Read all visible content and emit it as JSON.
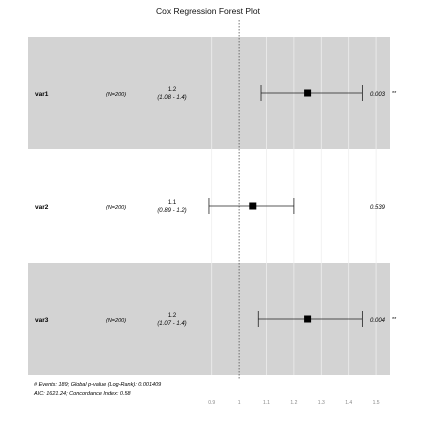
{
  "chart_data": {
    "type": "forest",
    "title": "Cox Regression Forest Plot",
    "x_range": [
      0.85,
      1.58
    ],
    "reference_line": 1.0,
    "ticks": [
      {
        "value": 0.9,
        "label": "0.9"
      },
      {
        "value": 1.0,
        "label": "1"
      },
      {
        "value": 1.1,
        "label": "1.1"
      },
      {
        "value": 1.2,
        "label": "1.2"
      },
      {
        "value": 1.3,
        "label": "1.3"
      },
      {
        "value": 1.4,
        "label": "1.4"
      },
      {
        "value": 1.5,
        "label": "1.5"
      }
    ],
    "rows": [
      {
        "variable": "var1",
        "n_label": "(N=200)",
        "hr": 1.25,
        "lower": 1.08,
        "upper": 1.45,
        "hr_label": "1.2",
        "ci_label": "(1.08 - 1.4)",
        "p_label": "0.003",
        "sig_label": "**",
        "shaded": true
      },
      {
        "variable": "var2",
        "n_label": "(N=200)",
        "hr": 1.05,
        "lower": 0.89,
        "upper": 1.2,
        "hr_label": "1.1",
        "ci_label": "(0.89 - 1.2)",
        "p_label": "0.539",
        "sig_label": "",
        "shaded": false
      },
      {
        "variable": "var3",
        "n_label": "(N=200)",
        "hr": 1.25,
        "lower": 1.07,
        "upper": 1.45,
        "hr_label": "1.2",
        "ci_label": "(1.07 - 1.4)",
        "p_label": "0.004",
        "sig_label": "**",
        "shaded": true
      }
    ],
    "footnote": [
      "# Events: 189; Global p-value (Log-Rank): 0.001409",
      "AIC: 1621.24; Concordance Index: 0.58"
    ]
  }
}
